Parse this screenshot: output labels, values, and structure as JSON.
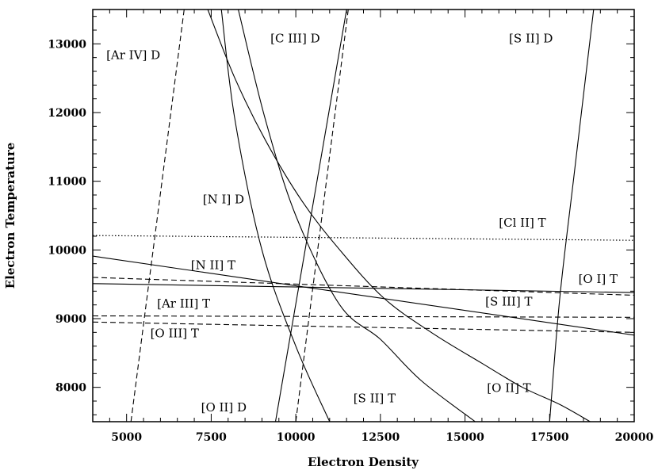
{
  "chart_data": {
    "type": "line",
    "title": "",
    "xlabel": "Electron Density",
    "ylabel": "Electron Temperature",
    "xlim": [
      4000,
      20000
    ],
    "ylim": [
      7500,
      13500
    ],
    "xticks": [
      5000,
      7500,
      10000,
      12500,
      15000,
      17500,
      20000
    ],
    "yticks": [
      8000,
      9000,
      10000,
      11000,
      12000,
      13000
    ],
    "grid": false,
    "legend": "none",
    "series": [
      {
        "id": "ariv-d",
        "label": "[Ar IV] D",
        "style": "dashed",
        "x": [
          5130,
          6700
        ],
        "y": [
          7500,
          13500
        ],
        "label_pos": {
          "x": 4400,
          "y": 12780
        }
      },
      {
        "id": "ciii-d",
        "label": "[C III] D",
        "style": "dashed",
        "x": [
          10000,
          11550
        ],
        "y": [
          7500,
          13500
        ],
        "label_pos": {
          "x": 9250,
          "y": 13020
        }
      },
      {
        "id": "sii-d",
        "label": "[S II] D",
        "style": "solid",
        "x": [
          17500,
          17800,
          18200,
          18800
        ],
        "y": [
          7500,
          9300,
          11000,
          13500
        ],
        "label_pos": {
          "x": 16300,
          "y": 13020
        }
      },
      {
        "id": "ni-d",
        "label": "[N I] D",
        "style": "solid",
        "x": [
          7400,
          8200,
          9100,
          10200,
          11300,
          12600,
          14000,
          15500,
          16700,
          17800,
          18700
        ],
        "y": [
          13500,
          12500,
          11600,
          10700,
          10000,
          9300,
          8800,
          8350,
          8000,
          7750,
          7500
        ],
        "label_pos": {
          "x": 7250,
          "y": 10680
        }
      },
      {
        "id": "oii-t",
        "label": "[O II] T",
        "style": "solid",
        "x": [
          8300,
          9100,
          10000,
          11300,
          12500,
          13700,
          15300
        ],
        "y": [
          13500,
          11900,
          10500,
          9200,
          8700,
          8100,
          7500
        ],
        "label_pos": {
          "x": 15650,
          "y": 7930
        }
      },
      {
        "id": "sii-t",
        "label": "[S II] T",
        "style": "solid",
        "x": [
          7800,
          8200,
          9000,
          10000,
          11000
        ],
        "y": [
          13500,
          11900,
          10000,
          8600,
          7500
        ],
        "label_pos": {
          "x": 11700,
          "y": 7780
        }
      },
      {
        "id": "oii-d",
        "label": "[O II] D",
        "style": "solid",
        "x": [
          9400,
          11500
        ],
        "y": [
          7500,
          13500
        ],
        "label_pos": {
          "x": 7200,
          "y": 7650
        }
      },
      {
        "id": "cli-t",
        "label": "[Cl II] T",
        "style": "dotted",
        "x": [
          4000,
          20000
        ],
        "y": [
          10210,
          10140
        ],
        "label_pos": {
          "x": 16000,
          "y": 10340
        }
      },
      {
        "id": "nii-t",
        "label": "[N II] T",
        "style": "solid",
        "x": [
          4000,
          20000
        ],
        "y": [
          9910,
          8760
        ],
        "label_pos": {
          "x": 6900,
          "y": 9720
        }
      },
      {
        "id": "oi-t",
        "label": "[O I] T",
        "style": "solid",
        "x": [
          4000,
          20000
        ],
        "y": [
          9510,
          9380
        ],
        "label_pos": {
          "x": 18350,
          "y": 9520
        }
      },
      {
        "id": "siii-t",
        "label": "[S III] T",
        "style": "dashed",
        "x": [
          4000,
          20000
        ],
        "y": [
          9600,
          9340
        ],
        "label_pos": {
          "x": 15600,
          "y": 9190
        }
      },
      {
        "id": "ariii-t",
        "label": "[Ar III] T",
        "style": "dashed",
        "x": [
          4000,
          20000
        ],
        "y": [
          9040,
          9020
        ],
        "label_pos": {
          "x": 5900,
          "y": 9160
        }
      },
      {
        "id": "oiii-t",
        "label": "[O III] T",
        "style": "dashed",
        "x": [
          4000,
          20000
        ],
        "y": [
          8950,
          8800
        ],
        "label_pos": {
          "x": 5700,
          "y": 8730
        }
      }
    ]
  }
}
